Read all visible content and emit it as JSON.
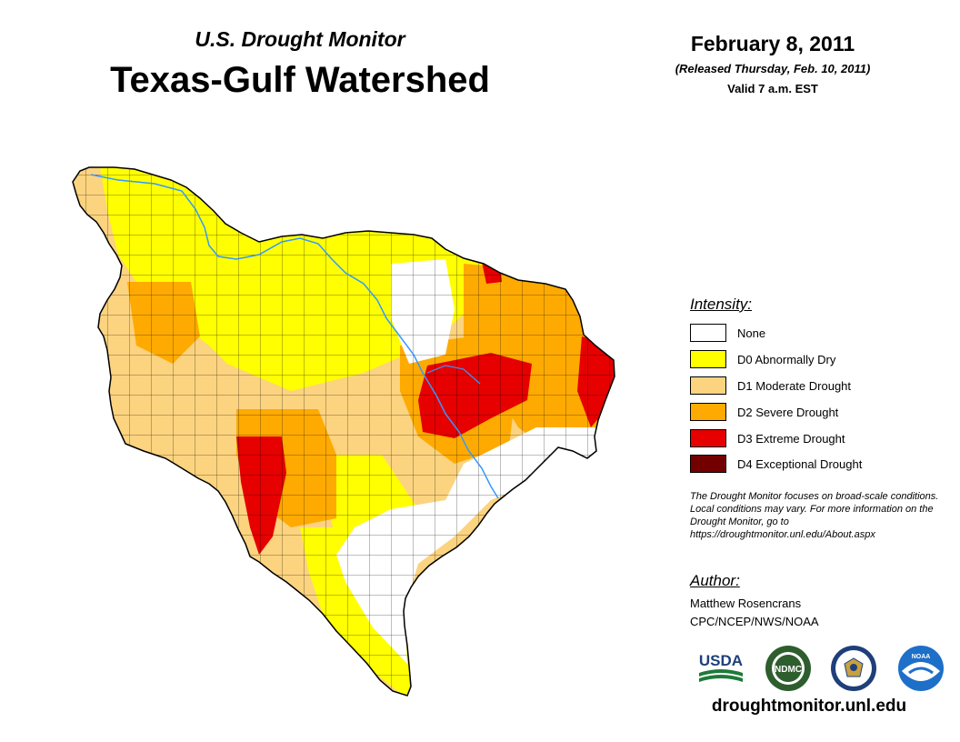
{
  "header": {
    "subtitle": "U.S. Drought Monitor",
    "title": "Texas-Gulf Watershed",
    "date": "February 8, 2011",
    "released": "(Released Thursday, Feb. 10, 2011)",
    "valid": "Valid 7 a.m. EST"
  },
  "legend": {
    "heading": "Intensity:",
    "items": [
      {
        "label": "None",
        "color": "#ffffff"
      },
      {
        "label": "D0 Abnormally Dry",
        "color": "#ffff00"
      },
      {
        "label": "D1 Moderate Drought",
        "color": "#fcd37f"
      },
      {
        "label": "D2 Severe Drought",
        "color": "#ffaa00"
      },
      {
        "label": "D3 Extreme Drought",
        "color": "#e60000"
      },
      {
        "label": "D4 Exceptional Drought",
        "color": "#730000"
      }
    ]
  },
  "note": "The Drought Monitor focuses on broad-scale conditions. Local conditions may vary. For more information on the Drought Monitor, go to https://droughtmonitor.unl.edu/About.aspx",
  "author": {
    "heading": "Author:",
    "name": "Matthew Rosencrans",
    "org": "CPC/NCEP/NWS/NOAA"
  },
  "logos": {
    "usda": "USDA",
    "ndmc": "NDMC",
    "noaa": "NOAA"
  },
  "website": "droughtmonitor.unl.edu",
  "colors": {
    "river": "#3399ff",
    "county_line": "#000000"
  }
}
